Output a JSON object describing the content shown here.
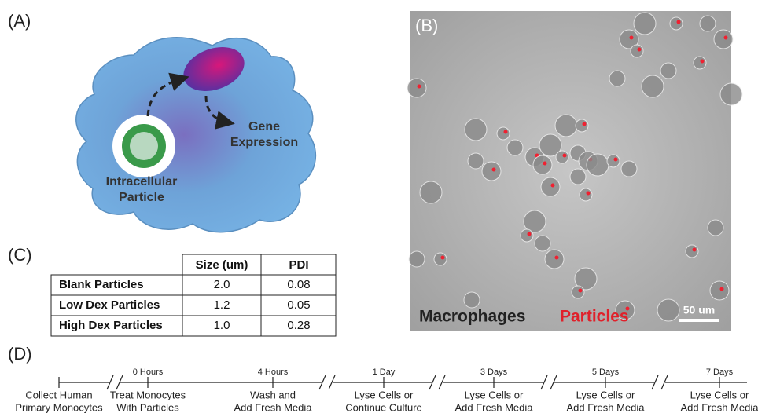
{
  "panel_a": {
    "label": "(A)",
    "gene_label": [
      "Gene",
      "Expression"
    ],
    "particle_label": [
      "Intracellular",
      "Particle"
    ]
  },
  "panel_b": {
    "label": "(B)",
    "legend": [
      "Macrophages",
      "Particles"
    ],
    "scale_bar": "50 um"
  },
  "panel_c": {
    "label": "(C)",
    "table": {
      "header": [
        "Size (um)",
        "PDI"
      ],
      "rows": [
        [
          "Blank Particles",
          "2.0",
          "0.08"
        ],
        [
          "Low Dex Particles",
          "1.2",
          "0.05"
        ],
        [
          "High Dex Particles",
          "1.0",
          "0.28"
        ]
      ]
    }
  },
  "panel_d": {
    "label": "(D)",
    "timeline": [
      {
        "lines": [
          "Collect Human",
          "Primary Monocytes"
        ]
      },
      {
        "time": "0 Hours",
        "lines": [
          "Treat Monocytes",
          "With Particles"
        ]
      },
      {
        "time": "4 Hours",
        "lines": [
          "Wash and",
          "Add Fresh Media"
        ]
      },
      {
        "time": "1 Day",
        "lines": [
          "Lyse Cells or",
          "Continue Culture"
        ]
      },
      {
        "time": "3 Days",
        "lines": [
          "Lyse Cells or",
          "Add Fresh Media"
        ]
      },
      {
        "time": "5 Days",
        "lines": [
          "Lyse Cells or",
          "Add Fresh Media"
        ]
      },
      {
        "time": "7 Days",
        "lines": [
          "Lyse Cells or",
          "Add Fresh Media"
        ]
      }
    ]
  }
}
